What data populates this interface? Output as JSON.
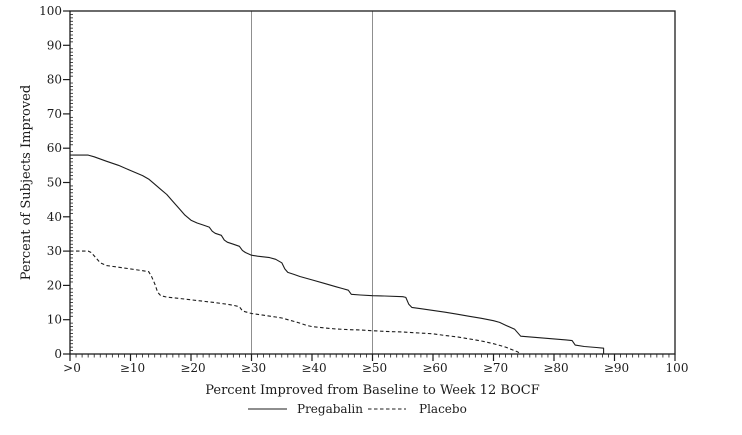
{
  "colors": {
    "background": "#ffffff",
    "foreground": "#1c1c1c",
    "reference_line": "#8f8f8f"
  },
  "chart_data": {
    "type": "line",
    "title": "",
    "xlabel": "Percent Improved from Baseline to Week 12 BOCF",
    "ylabel": "Percent of Subjects Improved",
    "xlim": [
      0,
      100
    ],
    "ylim": [
      0,
      100
    ],
    "grid": false,
    "legend_position": "bottom",
    "x_tick_values": [
      0,
      10,
      20,
      30,
      40,
      50,
      60,
      70,
      80,
      90,
      100
    ],
    "x_tick_labels": [
      ">0",
      "≥10",
      "≥20",
      "≥30",
      "≥40",
      "≥50",
      "≥60",
      "≥70",
      "≥80",
      "≥90",
      "100"
    ],
    "y_tick_values": [
      0,
      10,
      20,
      30,
      40,
      50,
      60,
      70,
      80,
      90,
      100
    ],
    "minor_tick_step": 1,
    "reference_lines_x": [
      30,
      50
    ],
    "series": [
      {
        "name": "Pregabalin",
        "style": "solid",
        "color": "#1c1c1c",
        "points": [
          [
            0,
            58
          ],
          [
            3,
            58
          ],
          [
            4,
            57.5
          ],
          [
            6,
            56.2
          ],
          [
            8,
            55
          ],
          [
            10,
            53.5
          ],
          [
            12,
            52
          ],
          [
            13,
            51
          ],
          [
            14,
            49.5
          ],
          [
            15,
            48
          ],
          [
            16,
            46.5
          ],
          [
            17,
            44.5
          ],
          [
            18,
            42.5
          ],
          [
            19,
            40.5
          ],
          [
            20,
            39
          ],
          [
            21,
            38.2
          ],
          [
            22,
            37.6
          ],
          [
            23,
            37
          ],
          [
            23.5,
            35.8
          ],
          [
            24,
            35.2
          ],
          [
            25,
            34.6
          ],
          [
            25.5,
            33.2
          ],
          [
            26,
            32.6
          ],
          [
            27,
            32
          ],
          [
            28,
            31.4
          ],
          [
            28.5,
            30.2
          ],
          [
            29,
            29.6
          ],
          [
            30,
            28.8
          ],
          [
            31,
            28.5
          ],
          [
            33,
            28.1
          ],
          [
            34,
            27.6
          ],
          [
            35,
            26.6
          ],
          [
            35.5,
            24.8
          ],
          [
            36,
            23.8
          ],
          [
            37,
            23.2
          ],
          [
            38,
            22.6
          ],
          [
            40,
            21.6
          ],
          [
            42,
            20.6
          ],
          [
            44,
            19.6
          ],
          [
            45,
            19.1
          ],
          [
            46,
            18.6
          ],
          [
            46.5,
            17.4
          ],
          [
            48,
            17.2
          ],
          [
            50,
            17
          ],
          [
            52,
            16.9
          ],
          [
            55,
            16.7
          ],
          [
            55.5,
            16.5
          ],
          [
            56,
            14.5
          ],
          [
            56.5,
            13.6
          ],
          [
            58,
            13.2
          ],
          [
            60,
            12.7
          ],
          [
            62,
            12.2
          ],
          [
            64,
            11.6
          ],
          [
            66,
            11
          ],
          [
            68,
            10.4
          ],
          [
            70,
            9.7
          ],
          [
            71,
            9.2
          ],
          [
            72,
            8.4
          ],
          [
            73,
            7.6
          ],
          [
            73.5,
            7.2
          ],
          [
            74.5,
            5.2
          ],
          [
            76,
            5
          ],
          [
            78,
            4.7
          ],
          [
            80,
            4.4
          ],
          [
            82,
            4.1
          ],
          [
            83,
            3.9
          ],
          [
            83.5,
            2.6
          ],
          [
            85,
            2.2
          ],
          [
            87,
            1.9
          ],
          [
            88.2,
            1.7
          ],
          [
            88.2,
            0
          ]
        ]
      },
      {
        "name": "Placebo",
        "style": "dashed",
        "color": "#1c1c1c",
        "points": [
          [
            0,
            30
          ],
          [
            3,
            30
          ],
          [
            3.5,
            29.6
          ],
          [
            4,
            28.6
          ],
          [
            5,
            26.6
          ],
          [
            6,
            25.8
          ],
          [
            8,
            25.3
          ],
          [
            10,
            24.8
          ],
          [
            12,
            24.3
          ],
          [
            13,
            24
          ],
          [
            13.5,
            22.5
          ],
          [
            14,
            20.5
          ],
          [
            14.5,
            18
          ],
          [
            15,
            17
          ],
          [
            16,
            16.6
          ],
          [
            18,
            16.2
          ],
          [
            20,
            15.8
          ],
          [
            22,
            15.4
          ],
          [
            24,
            15
          ],
          [
            26,
            14.5
          ],
          [
            27,
            14.2
          ],
          [
            28,
            13.8
          ],
          [
            28.5,
            12.6
          ],
          [
            29,
            12.3
          ],
          [
            30,
            11.8
          ],
          [
            32,
            11.3
          ],
          [
            34,
            10.8
          ],
          [
            35,
            10.5
          ],
          [
            36,
            10
          ],
          [
            37,
            9.5
          ],
          [
            38,
            9
          ],
          [
            39,
            8.4
          ],
          [
            40,
            8
          ],
          [
            42,
            7.6
          ],
          [
            44,
            7.3
          ],
          [
            46,
            7.1
          ],
          [
            48,
            7
          ],
          [
            50,
            6.8
          ],
          [
            52,
            6.6
          ],
          [
            55,
            6.4
          ],
          [
            58,
            6.1
          ],
          [
            60,
            5.9
          ],
          [
            62,
            5.4
          ],
          [
            64,
            5
          ],
          [
            65,
            4.7
          ],
          [
            66,
            4.4
          ],
          [
            67,
            4.1
          ],
          [
            68,
            3.8
          ],
          [
            69,
            3.4
          ],
          [
            70,
            3
          ],
          [
            71,
            2.5
          ],
          [
            72,
            2
          ],
          [
            73,
            1.3
          ],
          [
            74,
            0.6
          ],
          [
            74.5,
            0
          ]
        ]
      }
    ]
  }
}
